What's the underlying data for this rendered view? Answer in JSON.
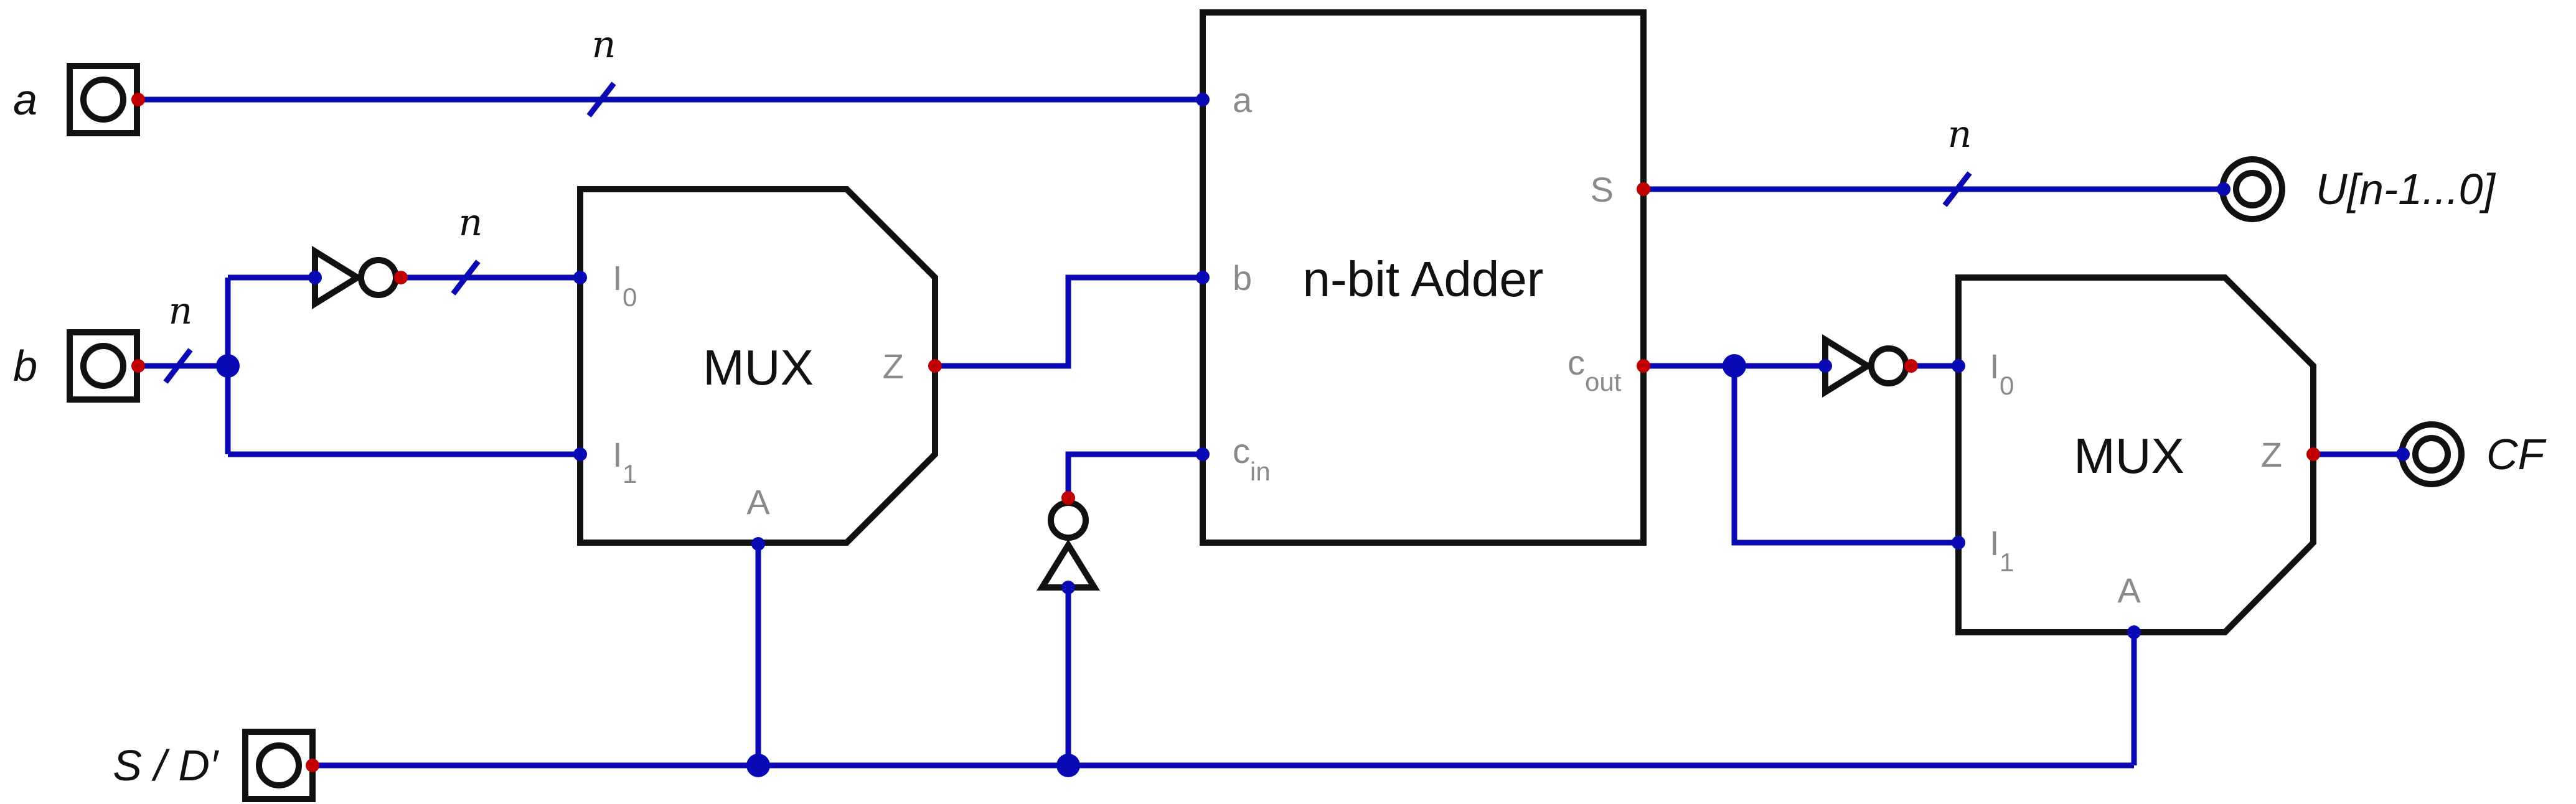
{
  "inputs": {
    "a": "a",
    "b": "b",
    "s": "S / D′"
  },
  "outputs": {
    "u": "U[n-1...0]",
    "cf": "CF"
  },
  "bus_width_label": "n",
  "adder": {
    "title": "n-bit Adder",
    "port_a": "a",
    "port_b": "b",
    "port_cin": "c",
    "port_cin_sub": "in",
    "port_s": "S",
    "port_cout": "c",
    "port_cout_sub": "out"
  },
  "mux1": {
    "title": "MUX",
    "port_i": "I",
    "port_i0_sub": "0",
    "port_i1_sub": "1",
    "port_z": "Z",
    "port_a": "A"
  },
  "mux2": {
    "title": "MUX",
    "port_i": "I",
    "port_i0_sub": "0",
    "port_i1_sub": "1",
    "port_z": "Z",
    "port_a": "A"
  },
  "colors": {
    "wire": "#0a0ab4",
    "pin": "#c00000",
    "block": "#111111",
    "port_label": "#8a8a8a"
  }
}
